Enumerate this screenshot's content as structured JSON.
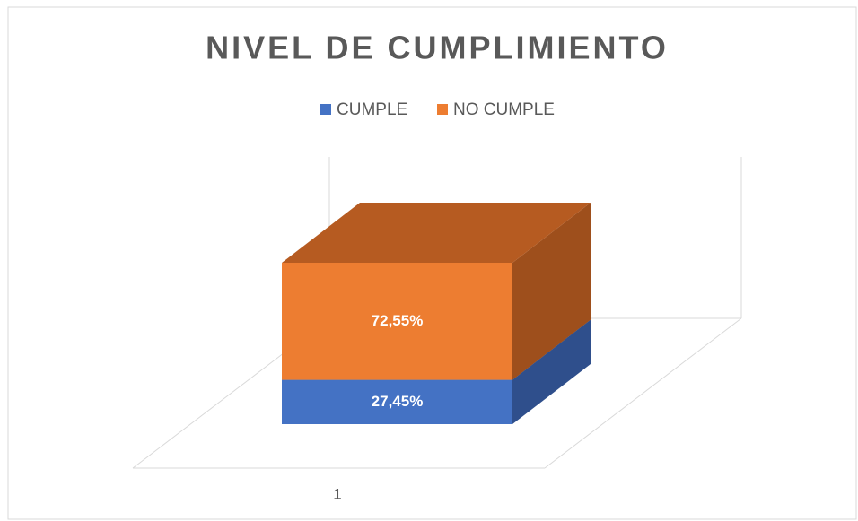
{
  "chart_data": {
    "type": "bar",
    "stacked": true,
    "title": "NIVEL DE CUMPLIMIENTO",
    "categories": [
      "1"
    ],
    "series": [
      {
        "name": "CUMPLE",
        "color": "#4472c4",
        "side_color": "#2f4f8c",
        "top_color": "#3a62a8",
        "values": [
          27.45
        ],
        "value_labels": [
          "27,45%"
        ]
      },
      {
        "name": "NO CUMPLE",
        "color": "#ed7d31",
        "side_color": "#9e4f1c",
        "top_color": "#b65b21",
        "values": [
          72.55
        ],
        "value_labels": [
          "72,55%"
        ]
      }
    ],
    "legend": "top"
  }
}
